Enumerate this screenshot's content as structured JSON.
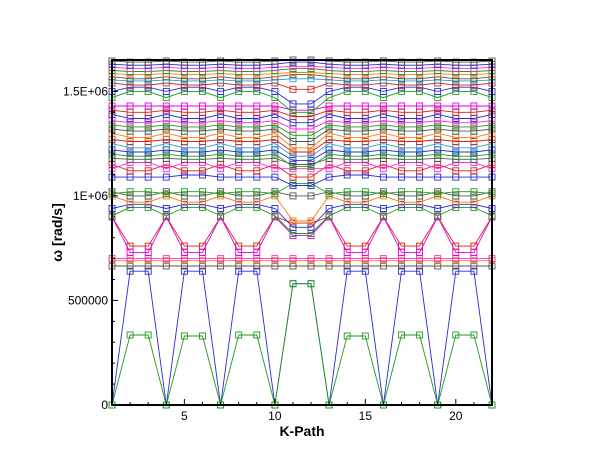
{
  "chart_data": {
    "type": "line",
    "title": "",
    "xlabel": "K-Path",
    "ylabel": "ω [rad/s]",
    "xlim": [
      1,
      22
    ],
    "ylim": [
      0,
      1650000
    ],
    "x_ticks": [
      5,
      10,
      15,
      20
    ],
    "y_ticks": [
      0,
      500000,
      1000000,
      1500000
    ],
    "x_tick_labels": [
      "5",
      "10",
      "15",
      "20"
    ],
    "y_tick_labels": [
      "0",
      "500000",
      "1E+06",
      "1.5E+06"
    ],
    "marker": "square",
    "grid": false,
    "legend": "none",
    "x": [
      1,
      2,
      3,
      4,
      5,
      6,
      7,
      8,
      9,
      10,
      11,
      12,
      13,
      14,
      15,
      16,
      17,
      18,
      19,
      20,
      21,
      22
    ],
    "series": [
      {
        "color": "#2b2bd4",
        "values": [
          0,
          640000,
          640000,
          0,
          640000,
          640000,
          0,
          640000,
          640000,
          0,
          580000,
          580000,
          0,
          640000,
          640000,
          0,
          640000,
          640000,
          0,
          640000,
          640000,
          0
        ]
      },
      {
        "color": "#1e9a1e",
        "values": [
          0,
          335000,
          335000,
          0,
          330000,
          330000,
          0,
          335000,
          335000,
          0,
          580000,
          580000,
          0,
          330000,
          330000,
          0,
          335000,
          335000,
          0,
          335000,
          335000,
          0
        ]
      },
      {
        "color": "#555555",
        "values": [
          665000,
          665000,
          665000,
          665000,
          665000,
          665000,
          665000,
          665000,
          665000,
          665000,
          665000,
          665000,
          665000,
          665000,
          665000,
          665000,
          665000,
          665000,
          665000,
          665000,
          665000,
          665000
        ]
      },
      {
        "color": "#f07f10",
        "values": [
          690000,
          690000,
          690000,
          690000,
          690000,
          690000,
          690000,
          690000,
          690000,
          690000,
          690000,
          690000,
          690000,
          690000,
          690000,
          690000,
          690000,
          690000,
          690000,
          690000,
          690000,
          690000
        ]
      },
      {
        "color": "#ff2ad4",
        "values": [
          700000,
          700000,
          700000,
          700000,
          700000,
          700000,
          700000,
          700000,
          700000,
          700000,
          700000,
          700000,
          700000,
          700000,
          700000,
          700000,
          700000,
          700000,
          700000,
          700000,
          700000,
          700000
        ]
      },
      {
        "color": "#d42020",
        "values": [
          900000,
          760000,
          760000,
          900000,
          760000,
          760000,
          900000,
          760000,
          760000,
          900000,
          870000,
          870000,
          900000,
          760000,
          760000,
          900000,
          760000,
          760000,
          900000,
          760000,
          760000,
          900000
        ]
      },
      {
        "color": "#e000e0",
        "values": [
          900000,
          730000,
          730000,
          900000,
          730000,
          730000,
          900000,
          730000,
          730000,
          900000,
          810000,
          810000,
          900000,
          730000,
          730000,
          900000,
          730000,
          730000,
          900000,
          730000,
          730000,
          900000
        ]
      },
      {
        "color": "#1e9a1e",
        "values": [
          905000,
          945000,
          945000,
          905000,
          945000,
          945000,
          905000,
          945000,
          945000,
          905000,
          820000,
          820000,
          905000,
          945000,
          945000,
          905000,
          945000,
          945000,
          905000,
          945000,
          945000,
          905000
        ]
      },
      {
        "color": "#2b2bd4",
        "values": [
          940000,
          960000,
          960000,
          940000,
          960000,
          960000,
          940000,
          960000,
          960000,
          940000,
          850000,
          850000,
          940000,
          960000,
          960000,
          940000,
          960000,
          960000,
          940000,
          960000,
          960000,
          940000
        ]
      },
      {
        "color": "#f07f10",
        "values": [
          1000000,
          970000,
          970000,
          1000000,
          970000,
          970000,
          1000000,
          970000,
          970000,
          1000000,
          880000,
          880000,
          1000000,
          970000,
          970000,
          1000000,
          970000,
          970000,
          1000000,
          970000,
          970000,
          1000000
        ]
      },
      {
        "color": "#555555",
        "values": [
          1020000,
          1000000,
          1000000,
          1020000,
          1000000,
          1000000,
          1020000,
          1000000,
          1000000,
          1020000,
          1000000,
          1000000,
          1020000,
          1000000,
          1000000,
          1020000,
          1000000,
          1000000,
          1020000,
          1000000,
          1000000,
          1020000
        ]
      },
      {
        "color": "#1e9a1e",
        "values": [
          1010000,
          1020000,
          1020000,
          1010000,
          1020000,
          1020000,
          1010000,
          1020000,
          1020000,
          1010000,
          1060000,
          1060000,
          1010000,
          1020000,
          1020000,
          1010000,
          1020000,
          1020000,
          1010000,
          1020000,
          1020000,
          1010000
        ]
      },
      {
        "color": "#2b2bd4",
        "values": [
          1090000,
          1090000,
          1090000,
          1090000,
          1100000,
          1100000,
          1090000,
          1090000,
          1090000,
          1090000,
          1050000,
          1050000,
          1090000,
          1100000,
          1100000,
          1090000,
          1090000,
          1090000,
          1090000,
          1090000,
          1090000,
          1090000
        ]
      },
      {
        "color": "#d42020",
        "values": [
          1150000,
          1120000,
          1120000,
          1150000,
          1120000,
          1120000,
          1150000,
          1120000,
          1120000,
          1150000,
          1090000,
          1090000,
          1150000,
          1120000,
          1120000,
          1150000,
          1120000,
          1120000,
          1150000,
          1120000,
          1120000,
          1150000
        ]
      },
      {
        "color": "#ff2ad4",
        "values": [
          1130000,
          1160000,
          1160000,
          1130000,
          1160000,
          1160000,
          1130000,
          1160000,
          1160000,
          1130000,
          1130000,
          1130000,
          1130000,
          1160000,
          1160000,
          1130000,
          1160000,
          1160000,
          1130000,
          1160000,
          1160000,
          1130000
        ]
      },
      {
        "color": "#555555",
        "values": [
          1180000,
          1175000,
          1175000,
          1180000,
          1175000,
          1175000,
          1180000,
          1175000,
          1175000,
          1180000,
          1150000,
          1150000,
          1180000,
          1175000,
          1175000,
          1180000,
          1175000,
          1175000,
          1180000,
          1175000,
          1175000,
          1180000
        ]
      },
      {
        "color": "#1e9a1e",
        "values": [
          1200000,
          1190000,
          1190000,
          1200000,
          1190000,
          1190000,
          1200000,
          1190000,
          1190000,
          1200000,
          1140000,
          1140000,
          1200000,
          1190000,
          1190000,
          1200000,
          1190000,
          1190000,
          1200000,
          1190000,
          1190000,
          1200000
        ]
      },
      {
        "color": "#2b2bd4",
        "values": [
          1220000,
          1210000,
          1210000,
          1220000,
          1210000,
          1210000,
          1220000,
          1210000,
          1210000,
          1220000,
          1170000,
          1170000,
          1220000,
          1210000,
          1210000,
          1220000,
          1210000,
          1210000,
          1220000,
          1210000,
          1210000,
          1220000
        ]
      },
      {
        "color": "#2aa0c8",
        "values": [
          1250000,
          1230000,
          1230000,
          1250000,
          1230000,
          1230000,
          1250000,
          1230000,
          1230000,
          1250000,
          1190000,
          1190000,
          1250000,
          1230000,
          1230000,
          1250000,
          1230000,
          1230000,
          1250000,
          1230000,
          1230000,
          1250000
        ]
      },
      {
        "color": "#d42020",
        "values": [
          1270000,
          1260000,
          1260000,
          1270000,
          1260000,
          1260000,
          1270000,
          1260000,
          1260000,
          1270000,
          1210000,
          1210000,
          1270000,
          1260000,
          1260000,
          1270000,
          1260000,
          1260000,
          1270000,
          1260000,
          1260000,
          1270000
        ]
      },
      {
        "color": "#f07f10",
        "values": [
          1300000,
          1280000,
          1280000,
          1300000,
          1280000,
          1280000,
          1300000,
          1280000,
          1280000,
          1300000,
          1230000,
          1230000,
          1300000,
          1280000,
          1280000,
          1300000,
          1280000,
          1280000,
          1300000,
          1280000,
          1280000,
          1300000
        ]
      },
      {
        "color": "#555555",
        "values": [
          1320000,
          1310000,
          1310000,
          1320000,
          1310000,
          1310000,
          1320000,
          1310000,
          1310000,
          1320000,
          1260000,
          1260000,
          1320000,
          1310000,
          1310000,
          1320000,
          1310000,
          1310000,
          1320000,
          1310000,
          1310000,
          1320000
        ]
      },
      {
        "color": "#1e9a1e",
        "values": [
          1340000,
          1330000,
          1330000,
          1340000,
          1330000,
          1330000,
          1340000,
          1330000,
          1330000,
          1340000,
          1290000,
          1290000,
          1340000,
          1330000,
          1330000,
          1340000,
          1330000,
          1330000,
          1340000,
          1330000,
          1330000,
          1340000
        ]
      },
      {
        "color": "#ff2ad4",
        "values": [
          1360000,
          1350000,
          1350000,
          1360000,
          1350000,
          1350000,
          1360000,
          1350000,
          1350000,
          1360000,
          1320000,
          1320000,
          1360000,
          1350000,
          1350000,
          1360000,
          1350000,
          1350000,
          1360000,
          1350000,
          1350000,
          1360000
        ]
      },
      {
        "color": "#2b2bd4",
        "values": [
          1390000,
          1370000,
          1370000,
          1390000,
          1370000,
          1370000,
          1390000,
          1370000,
          1370000,
          1390000,
          1350000,
          1350000,
          1390000,
          1370000,
          1370000,
          1390000,
          1370000,
          1370000,
          1390000,
          1370000,
          1370000,
          1390000
        ]
      },
      {
        "color": "#d42020",
        "values": [
          1410000,
          1400000,
          1400000,
          1410000,
          1400000,
          1400000,
          1410000,
          1400000,
          1400000,
          1410000,
          1380000,
          1380000,
          1410000,
          1400000,
          1400000,
          1410000,
          1400000,
          1400000,
          1410000,
          1400000,
          1400000,
          1410000
        ]
      },
      {
        "color": "#e000e0",
        "values": [
          1430000,
          1430000,
          1430000,
          1430000,
          1430000,
          1430000,
          1430000,
          1430000,
          1430000,
          1430000,
          1410000,
          1410000,
          1430000,
          1430000,
          1430000,
          1430000,
          1430000,
          1430000,
          1430000,
          1430000,
          1430000,
          1430000
        ]
      },
      {
        "color": "#1e9a1e",
        "values": [
          1470000,
          1500000,
          1500000,
          1470000,
          1500000,
          1500000,
          1470000,
          1500000,
          1500000,
          1470000,
          1400000,
          1400000,
          1470000,
          1500000,
          1500000,
          1470000,
          1500000,
          1500000,
          1470000,
          1500000,
          1500000,
          1470000
        ]
      },
      {
        "color": "#2b2bd4",
        "values": [
          1500000,
          1520000,
          1520000,
          1500000,
          1520000,
          1520000,
          1500000,
          1520000,
          1520000,
          1500000,
          1440000,
          1440000,
          1500000,
          1520000,
          1520000,
          1500000,
          1520000,
          1520000,
          1500000,
          1520000,
          1520000,
          1500000
        ]
      },
      {
        "color": "#d42020",
        "values": [
          1540000,
          1530000,
          1530000,
          1540000,
          1530000,
          1530000,
          1540000,
          1530000,
          1530000,
          1540000,
          1510000,
          1510000,
          1540000,
          1530000,
          1530000,
          1540000,
          1530000,
          1530000,
          1540000,
          1530000,
          1530000,
          1540000
        ]
      },
      {
        "color": "#2aa0c8",
        "values": [
          1555000,
          1550000,
          1550000,
          1555000,
          1550000,
          1550000,
          1555000,
          1550000,
          1550000,
          1555000,
          1560000,
          1560000,
          1555000,
          1550000,
          1550000,
          1555000,
          1550000,
          1550000,
          1555000,
          1550000,
          1550000,
          1555000
        ]
      },
      {
        "color": "#555555",
        "values": [
          1570000,
          1560000,
          1560000,
          1570000,
          1560000,
          1560000,
          1570000,
          1560000,
          1560000,
          1570000,
          1580000,
          1580000,
          1570000,
          1560000,
          1560000,
          1570000,
          1560000,
          1560000,
          1570000,
          1560000,
          1560000,
          1570000
        ]
      },
      {
        "color": "#f07f10",
        "values": [
          1585000,
          1580000,
          1580000,
          1585000,
          1580000,
          1580000,
          1585000,
          1580000,
          1580000,
          1585000,
          1590000,
          1590000,
          1585000,
          1580000,
          1580000,
          1585000,
          1580000,
          1580000,
          1585000,
          1580000,
          1580000,
          1585000
        ]
      },
      {
        "color": "#1e9a1e",
        "values": [
          1600000,
          1595000,
          1595000,
          1600000,
          1595000,
          1595000,
          1600000,
          1595000,
          1595000,
          1600000,
          1610000,
          1610000,
          1600000,
          1595000,
          1595000,
          1600000,
          1595000,
          1595000,
          1600000,
          1595000,
          1595000,
          1600000
        ]
      },
      {
        "color": "#ff2ad4",
        "values": [
          1615000,
          1610000,
          1610000,
          1615000,
          1610000,
          1610000,
          1615000,
          1610000,
          1610000,
          1615000,
          1620000,
          1620000,
          1615000,
          1610000,
          1610000,
          1615000,
          1610000,
          1610000,
          1615000,
          1610000,
          1610000,
          1615000
        ]
      },
      {
        "color": "#2b2bd4",
        "values": [
          1630000,
          1625000,
          1625000,
          1630000,
          1625000,
          1625000,
          1630000,
          1625000,
          1625000,
          1630000,
          1640000,
          1640000,
          1630000,
          1625000,
          1625000,
          1630000,
          1625000,
          1625000,
          1630000,
          1625000,
          1625000,
          1630000
        ]
      },
      {
        "color": "#555555",
        "values": [
          1645000,
          1640000,
          1640000,
          1645000,
          1640000,
          1640000,
          1645000,
          1640000,
          1640000,
          1645000,
          1650000,
          1650000,
          1645000,
          1640000,
          1640000,
          1645000,
          1640000,
          1640000,
          1645000,
          1640000,
          1640000,
          1645000
        ]
      }
    ]
  }
}
